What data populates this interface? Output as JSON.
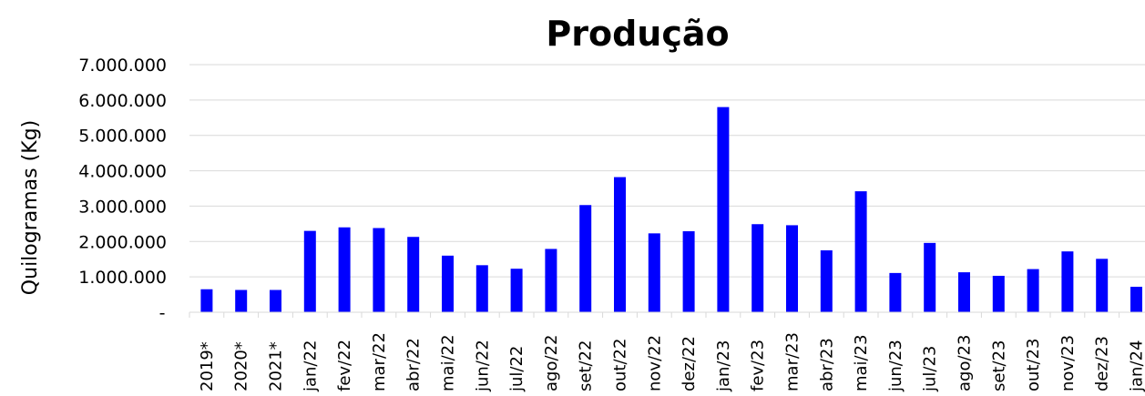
{
  "chart_data": {
    "type": "bar",
    "title": "Produção",
    "xlabel": "",
    "ylabel": "Quilogramas (Kg)",
    "ylim": [
      0,
      7000000
    ],
    "yticks": [
      {
        "value": 0,
        "label": "-"
      },
      {
        "value": 1000000,
        "label": "1.000.000"
      },
      {
        "value": 2000000,
        "label": "2.000.000"
      },
      {
        "value": 3000000,
        "label": "3.000.000"
      },
      {
        "value": 4000000,
        "label": "4.000.000"
      },
      {
        "value": 5000000,
        "label": "5.000.000"
      },
      {
        "value": 6000000,
        "label": "6.000.000"
      },
      {
        "value": 7000000,
        "label": "7.000.000"
      }
    ],
    "grid": true,
    "legend": "none",
    "bar_color": "#0000ff",
    "categories": [
      "2019*",
      "2020*",
      "2021*",
      "jan/22",
      "fev/22",
      "mar/22",
      "abr/22",
      "mai/22",
      "jun/22",
      "jul/22",
      "ago/22",
      "set/22",
      "out/22",
      "nov/22",
      "dez/22",
      "jan/23",
      "fev/23",
      "mar/23",
      "abr/23",
      "mai/23",
      "jun/23",
      "jul/23",
      "ago/23",
      "set/23",
      "out/23",
      "nov/23",
      "dez/23",
      "jan/24"
    ],
    "values": [
      650000,
      630000,
      630000,
      2300000,
      2400000,
      2380000,
      2130000,
      1600000,
      1330000,
      1230000,
      1790000,
      3030000,
      3820000,
      2230000,
      2290000,
      5800000,
      2490000,
      2460000,
      1750000,
      3420000,
      1110000,
      1960000,
      1130000,
      1030000,
      1220000,
      1720000,
      1510000,
      720000
    ]
  }
}
